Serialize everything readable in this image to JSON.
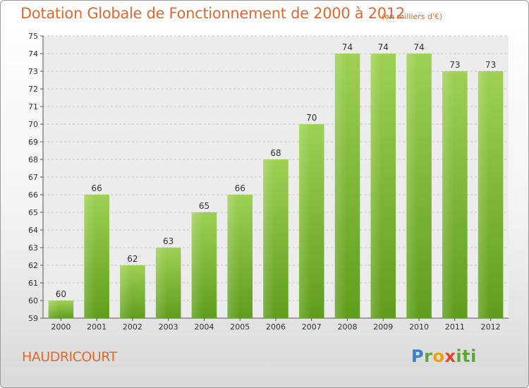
{
  "chart_data": {
    "type": "bar",
    "title": "Dotation Globale de Fonctionnement de 2000 à 2012",
    "unit": "(en milliers d'€)",
    "categories": [
      "2000",
      "2001",
      "2002",
      "2003",
      "2004",
      "2005",
      "2006",
      "2007",
      "2008",
      "2009",
      "2010",
      "2011",
      "2012"
    ],
    "values": [
      60,
      66,
      62,
      63,
      65,
      66,
      68,
      70,
      74,
      74,
      74,
      73,
      73
    ],
    "ylim": [
      59,
      75
    ],
    "yticks": [
      "59",
      "60",
      "61",
      "62",
      "63",
      "64",
      "65",
      "66",
      "67",
      "68",
      "69",
      "70",
      "71",
      "72",
      "73",
      "74",
      "75"
    ],
    "grid": true,
    "bar_color_top": "#9fd054",
    "bar_color_bottom": "#5f9e1c"
  },
  "footer": {
    "place": "HAUDRICOURT",
    "logo": [
      "P",
      "r",
      "o",
      "x",
      "i",
      "t",
      "i"
    ]
  }
}
